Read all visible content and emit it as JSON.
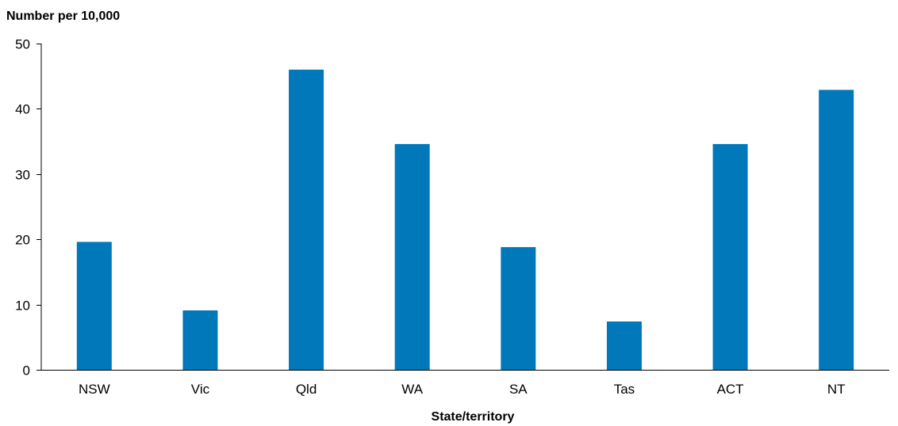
{
  "chart_data": {
    "type": "bar",
    "title": "",
    "ylabel": "Number per 10,000",
    "xlabel": "State/territory",
    "categories": [
      "NSW",
      "Vic",
      "Qld",
      "WA",
      "SA",
      "Tas",
      "ACT",
      "NT"
    ],
    "series": [
      {
        "values": [
          19.6,
          9.1,
          46.0,
          34.6,
          18.8,
          7.4,
          34.6,
          42.9
        ]
      }
    ],
    "ylim": [
      0,
      50
    ],
    "yticks": [
      0,
      10,
      20,
      30,
      40,
      50
    ],
    "grid": false,
    "legend": "none",
    "bar_color": "#0078B9"
  }
}
